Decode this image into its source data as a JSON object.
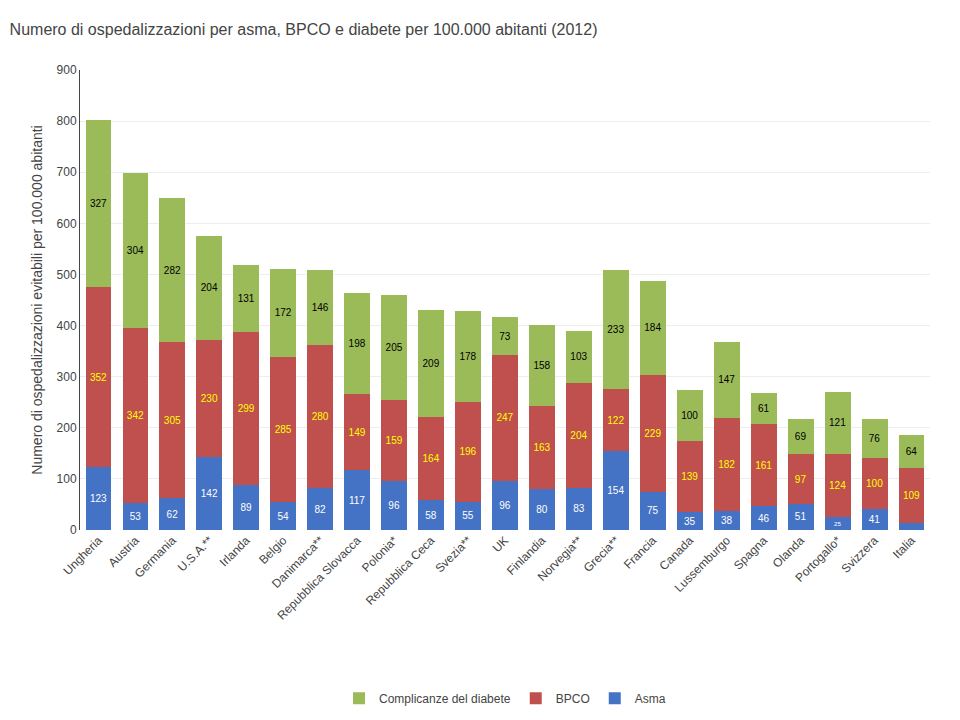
{
  "chart_data": {
    "type": "bar",
    "title": "Numero di ospedalizzazioni per asma, BPCO e diabete per 100.000 abitanti (2012)",
    "ylabel": "Numero di ospedalizzazioni evitabili per 100.000 abitanti",
    "categories": [
      "Ungheria",
      "Austria",
      "Germania",
      "U.S.A.**",
      "Irlanda",
      "Belgio",
      "Danimarca**",
      "Repubblica Slovacca",
      "Polonia*",
      "Repubblica Ceca",
      "Svezia**",
      "UK",
      "Finlandia",
      "Norvegia**",
      "Grecia**",
      "Francia",
      "Canada",
      "Lussemburgo",
      "Spagna",
      "Olanda",
      "Portogallo*",
      "Svizzera",
      "Italia"
    ],
    "series": [
      {
        "name": "Asma",
        "color": "#4472c4",
        "values": [
          123,
          53,
          62,
          142,
          89,
          54,
          82,
          117,
          96,
          58,
          55,
          96,
          80,
          83,
          154,
          75,
          35,
          38,
          46,
          51,
          25,
          41,
          13
        ]
      },
      {
        "name": "BPCO",
        "color": "#c0504d",
        "values": [
          352,
          342,
          305,
          230,
          299,
          285,
          280,
          149,
          159,
          164,
          196,
          247,
          163,
          204,
          122,
          229,
          139,
          182,
          161,
          97,
          124,
          100,
          109
        ]
      },
      {
        "name": "Complicanze del diabete",
        "color": "#9bbb59",
        "values": [
          327,
          304,
          282,
          204,
          131,
          172,
          146,
          198,
          205,
          209,
          178,
          73,
          158,
          103,
          233,
          184,
          100,
          147,
          61,
          69,
          121,
          76,
          64
        ]
      }
    ],
    "stacked": true,
    "data_labels": true,
    "ylim": [
      0,
      900
    ],
    "yticks": [
      0,
      100,
      200,
      300,
      400,
      500,
      600,
      700,
      800,
      900
    ],
    "grid": true,
    "legend": "bottom"
  }
}
